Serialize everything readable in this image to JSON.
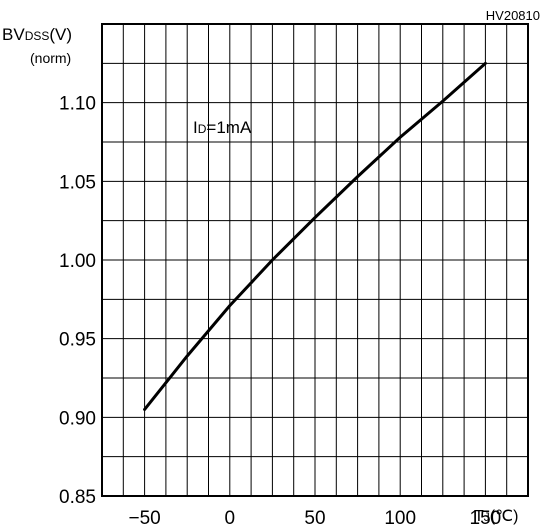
{
  "chart_data": {
    "type": "line",
    "figure_code": "HV20810",
    "ylabel": "BV",
    "ylabel_sub": "DSS",
    "ylabel_unit": "(V)",
    "ylabel_norm": "(norm)",
    "xlabel": "T",
    "xlabel_sub": "J",
    "xlabel_unit": "(℃)",
    "annotation": "ID=1mA",
    "annotation_main": "I",
    "annotation_sub": "D",
    "annotation_rest": "=1mA",
    "xlim": [
      -75,
      175
    ],
    "ylim": [
      0.85,
      1.15
    ],
    "x_ticks": [
      -50,
      0,
      50,
      100,
      150
    ],
    "x_tick_labels": [
      "−50",
      "0",
      "50",
      "100",
      "150"
    ],
    "y_ticks": [
      0.85,
      0.9,
      0.95,
      1.0,
      1.05,
      1.1
    ],
    "y_tick_labels": [
      "0.85",
      "0.90",
      "0.95",
      "1.00",
      "1.05",
      "1.10"
    ],
    "grid": true,
    "series": [
      {
        "x": [
          -50,
          -25,
          0,
          25,
          50,
          75,
          100,
          125,
          150
        ],
        "y": [
          0.905,
          0.939,
          0.971,
          1.0,
          1.027,
          1.053,
          1.078,
          1.101,
          1.125
        ]
      }
    ]
  }
}
